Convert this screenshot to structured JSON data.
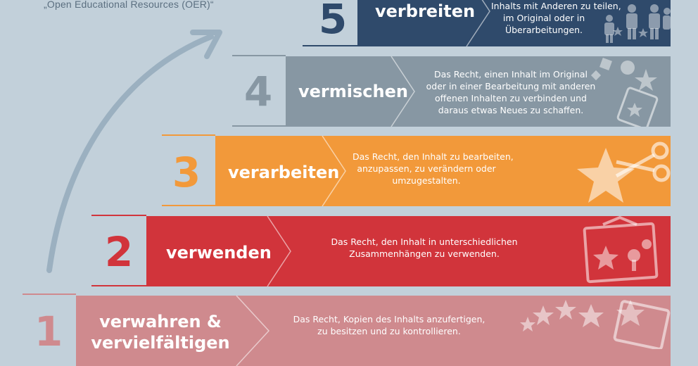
{
  "subtitle": "„Open Educational Resources (OER)“",
  "colors": {
    "background": "#c2d0da",
    "step1": "#cf8a8e",
    "step2": "#d1343b",
    "step3": "#f2993a",
    "step4": "#8797a3",
    "step5": "#2f4a6b",
    "arrow": "#9bb0c0"
  },
  "steps": [
    {
      "number": "1",
      "label": [
        "verwahren &",
        "vervielfältigen"
      ],
      "description": [
        "Das Recht, Kopien des Inhalts anzufertigen,",
        "zu besitzen und zu kontrollieren."
      ],
      "icon": "stars-and-folder-icon"
    },
    {
      "number": "2",
      "label": [
        "verwenden"
      ],
      "description": [
        "Das Recht, den Inhalt in unterschiedlichen",
        "Zusammenhängen zu verwenden."
      ],
      "icon": "picture-frame-icon"
    },
    {
      "number": "3",
      "label": [
        "verarbeiten"
      ],
      "description": [
        "Das Recht, den Inhalt zu bearbeiten,",
        "anzupassen, zu verändern oder",
        "umzugestalten."
      ],
      "icon": "star-and-scissors-icon"
    },
    {
      "number": "4",
      "label": [
        "vermischen"
      ],
      "description": [
        "Das Recht, einen Inhalt im Original",
        "oder in einer Bearbeitung mit anderen",
        "offenen Inhalten zu verbinden und",
        "daraus etwas Neues zu schaffen."
      ],
      "icon": "shapes-and-jar-icon"
    },
    {
      "number": "5",
      "label": [
        "verbreiten"
      ],
      "description": [
        "Inhalts mit Anderen zu teilen,",
        "im Original oder in",
        "Überarbeitungen."
      ],
      "icon": "people-icon"
    }
  ]
}
